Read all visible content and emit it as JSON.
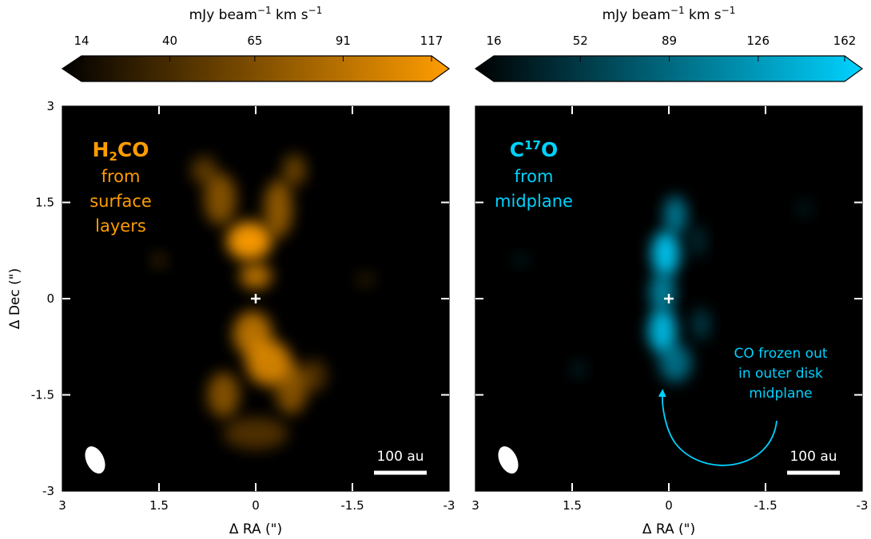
{
  "chart_data": [
    {
      "type": "heatmap",
      "molecule": {
        "base": "H",
        "sub": "2",
        "rest": "CO"
      },
      "description": [
        "from",
        "surface",
        "layers"
      ],
      "accent": "#ff9d00",
      "colorbar": {
        "label_main": "mJy beam",
        "label_exp1": "−1",
        "label_mid": " km s",
        "label_exp2": "−1",
        "ticks": [
          14,
          40,
          65,
          91,
          117
        ],
        "range": [
          14,
          117
        ],
        "colors": [
          "#000000",
          "#ff9d00"
        ]
      },
      "x": {
        "label": "Δ RA (\")",
        "ticks": [
          3,
          1.5,
          0,
          -1.5,
          -3
        ],
        "tick_labels": [
          "3",
          "1.5",
          "0",
          "-1.5",
          "-3"
        ],
        "range": [
          3,
          -3
        ]
      },
      "y": {
        "label": "Δ Dec (\")",
        "ticks": [
          3,
          1.5,
          0,
          -1.5,
          -3
        ],
        "tick_labels": [
          "3",
          "1.5",
          "0",
          "-1.5",
          "-3"
        ],
        "range": [
          -3,
          3
        ]
      },
      "scale_bar": "100 au",
      "emission": [
        {
          "x": 0.1,
          "y": 0.9,
          "sx": 0.35,
          "sy": 0.3,
          "v": 0.95
        },
        {
          "x": -0.35,
          "y": 1.4,
          "sx": 0.22,
          "sy": 0.45,
          "v": 0.55
        },
        {
          "x": 0.55,
          "y": 1.55,
          "sx": 0.25,
          "sy": 0.4,
          "v": 0.5
        },
        {
          "x": -0.6,
          "y": 2.0,
          "sx": 0.18,
          "sy": 0.25,
          "v": 0.4
        },
        {
          "x": 0.8,
          "y": 2.0,
          "sx": 0.2,
          "sy": 0.22,
          "v": 0.35
        },
        {
          "x": 0.0,
          "y": 0.35,
          "sx": 0.25,
          "sy": 0.2,
          "v": 0.7
        },
        {
          "x": 0.05,
          "y": -0.55,
          "sx": 0.3,
          "sy": 0.35,
          "v": 0.7
        },
        {
          "x": -0.2,
          "y": -1.0,
          "sx": 0.35,
          "sy": 0.35,
          "v": 0.8
        },
        {
          "x": 0.5,
          "y": -1.5,
          "sx": 0.25,
          "sy": 0.35,
          "v": 0.5
        },
        {
          "x": -0.55,
          "y": -1.4,
          "sx": 0.25,
          "sy": 0.4,
          "v": 0.5
        },
        {
          "x": -0.9,
          "y": -1.2,
          "sx": 0.2,
          "sy": 0.25,
          "v": 0.3
        },
        {
          "x": 0.0,
          "y": -2.1,
          "sx": 0.5,
          "sy": 0.25,
          "v": 0.3
        },
        {
          "x": 1.5,
          "y": 0.6,
          "sx": 0.12,
          "sy": 0.12,
          "v": 0.2
        },
        {
          "x": -1.7,
          "y": 0.3,
          "sx": 0.15,
          "sy": 0.12,
          "v": 0.15
        }
      ]
    },
    {
      "type": "heatmap",
      "molecule": {
        "base": "C",
        "sup": "17",
        "rest": "O"
      },
      "description": [
        "from",
        "midplane"
      ],
      "accent": "#00d2ff",
      "colorbar": {
        "label_main": "mJy beam",
        "label_exp1": "−1",
        "label_mid": " km s",
        "label_exp2": "−1",
        "ticks": [
          16,
          52,
          89,
          126,
          162
        ],
        "range": [
          16,
          162
        ],
        "colors": [
          "#000000",
          "#00d2ff"
        ]
      },
      "x": {
        "label": "Δ RA (\")",
        "ticks": [
          3,
          1.5,
          0,
          -1.5,
          -3
        ],
        "tick_labels": [
          "3",
          "1.5",
          "0",
          "-1.5",
          "-3"
        ],
        "range": [
          3,
          -3
        ]
      },
      "y": {
        "label": "Δ Dec (\")",
        "ticks": [
          3,
          1.5,
          0,
          -1.5,
          -3
        ],
        "tick_labels": [
          "3",
          "1.5",
          "0",
          "-1.5",
          "-3"
        ],
        "range": [
          -3,
          3
        ]
      },
      "scale_bar": "100 au",
      "annotation": [
        "CO frozen out",
        "in outer disk",
        "midplane"
      ],
      "emission": [
        {
          "x": 0.05,
          "y": 0.7,
          "sx": 0.22,
          "sy": 0.35,
          "v": 0.9
        },
        {
          "x": -0.1,
          "y": 1.3,
          "sx": 0.18,
          "sy": 0.3,
          "v": 0.55
        },
        {
          "x": 0.1,
          "y": 0.1,
          "sx": 0.2,
          "sy": 0.3,
          "v": 0.6
        },
        {
          "x": 0.1,
          "y": -0.5,
          "sx": 0.22,
          "sy": 0.35,
          "v": 0.85
        },
        {
          "x": -0.1,
          "y": -1.0,
          "sx": 0.25,
          "sy": 0.3,
          "v": 0.5
        },
        {
          "x": -0.5,
          "y": -0.4,
          "sx": 0.15,
          "sy": 0.25,
          "v": 0.25
        },
        {
          "x": -0.45,
          "y": 0.9,
          "sx": 0.12,
          "sy": 0.25,
          "v": 0.2
        },
        {
          "x": 1.4,
          "y": -1.1,
          "sx": 0.12,
          "sy": 0.12,
          "v": 0.15
        },
        {
          "x": -2.1,
          "y": 1.4,
          "sx": 0.12,
          "sy": 0.12,
          "v": 0.12
        },
        {
          "x": 2.3,
          "y": 0.6,
          "sx": 0.12,
          "sy": 0.1,
          "v": 0.12
        }
      ]
    }
  ]
}
